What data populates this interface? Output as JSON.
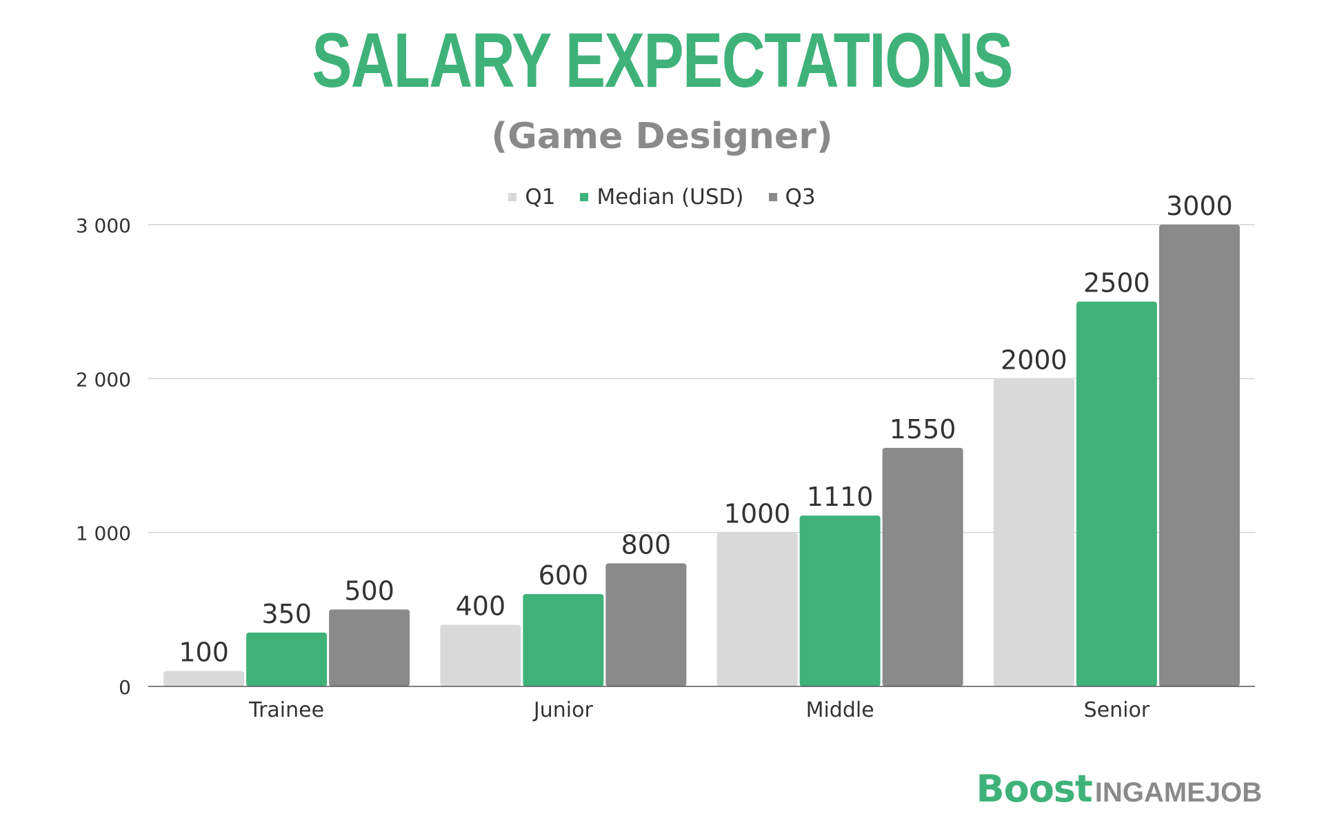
{
  "chart_data": {
    "type": "bar",
    "title": "SALARY EXPECTATIONS",
    "subtitle": "(Game Designer)",
    "xlabel": "",
    "ylabel": "",
    "categories": [
      "Trainee",
      "Junior",
      "Middle",
      "Senior"
    ],
    "series": [
      {
        "name": "Q1",
        "color": "#d9d9d9",
        "values": [
          100,
          400,
          1000,
          2000
        ]
      },
      {
        "name": "Median (USD)",
        "color": "#3fb27a",
        "values": [
          350,
          600,
          1110,
          2500
        ]
      },
      {
        "name": "Q3",
        "color": "#8a8a8a",
        "values": [
          500,
          800,
          1550,
          3000
        ]
      }
    ],
    "ylim": [
      0,
      3000
    ],
    "yticks": [
      0,
      1000,
      2000,
      3000
    ],
    "ytick_labels": [
      "0",
      "1 000",
      "2 000",
      "3 000"
    ],
    "grid": true,
    "legend_position": "top-center"
  },
  "brand": {
    "strong": "Boost",
    "rest": "INGAMEJOB"
  }
}
